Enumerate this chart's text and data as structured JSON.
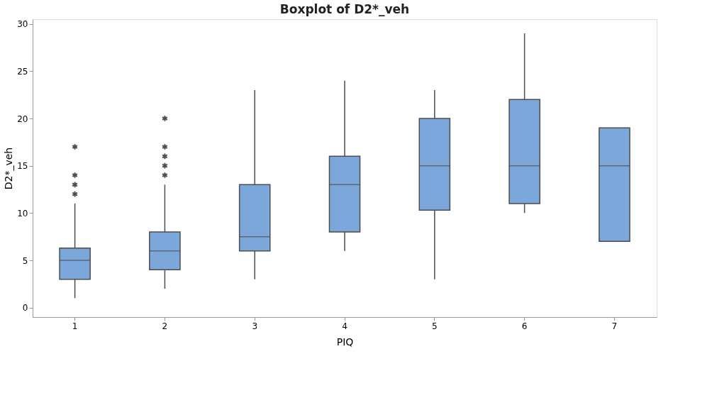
{
  "chart_data": {
    "type": "box",
    "title": "Boxplot of D2*_veh",
    "xlabel": "PIQ",
    "ylabel": "D2*_veh",
    "categories": [
      "1",
      "2",
      "3",
      "4",
      "5",
      "6",
      "7"
    ],
    "color": "#7ba7db",
    "boxes": [
      {
        "low": 1,
        "q1": 3,
        "median": 5,
        "q3": 6.3,
        "high": 11,
        "outliers": [
          12,
          13,
          14,
          17
        ]
      },
      {
        "low": 2,
        "q1": 4,
        "median": 6,
        "q3": 8,
        "high": 13,
        "outliers": [
          14,
          15,
          16,
          17,
          20
        ]
      },
      {
        "low": 3,
        "q1": 6,
        "median": 7.5,
        "q3": 13,
        "high": 23
      },
      {
        "low": 6,
        "q1": 8,
        "median": 13,
        "q3": 16,
        "high": 24
      },
      {
        "low": 3,
        "q1": 10.3,
        "median": 15,
        "q3": 20,
        "high": 23
      },
      {
        "low": 10,
        "q1": 11,
        "median": 15,
        "q3": 22,
        "high": 29
      },
      {
        "low": 7,
        "q1": 7,
        "median": 15,
        "q3": 19,
        "high": 19
      }
    ],
    "ylim": [
      -1,
      30.5
    ],
    "yticks": [
      0,
      5,
      10,
      15,
      20,
      25,
      30
    ],
    "grid": false
  }
}
